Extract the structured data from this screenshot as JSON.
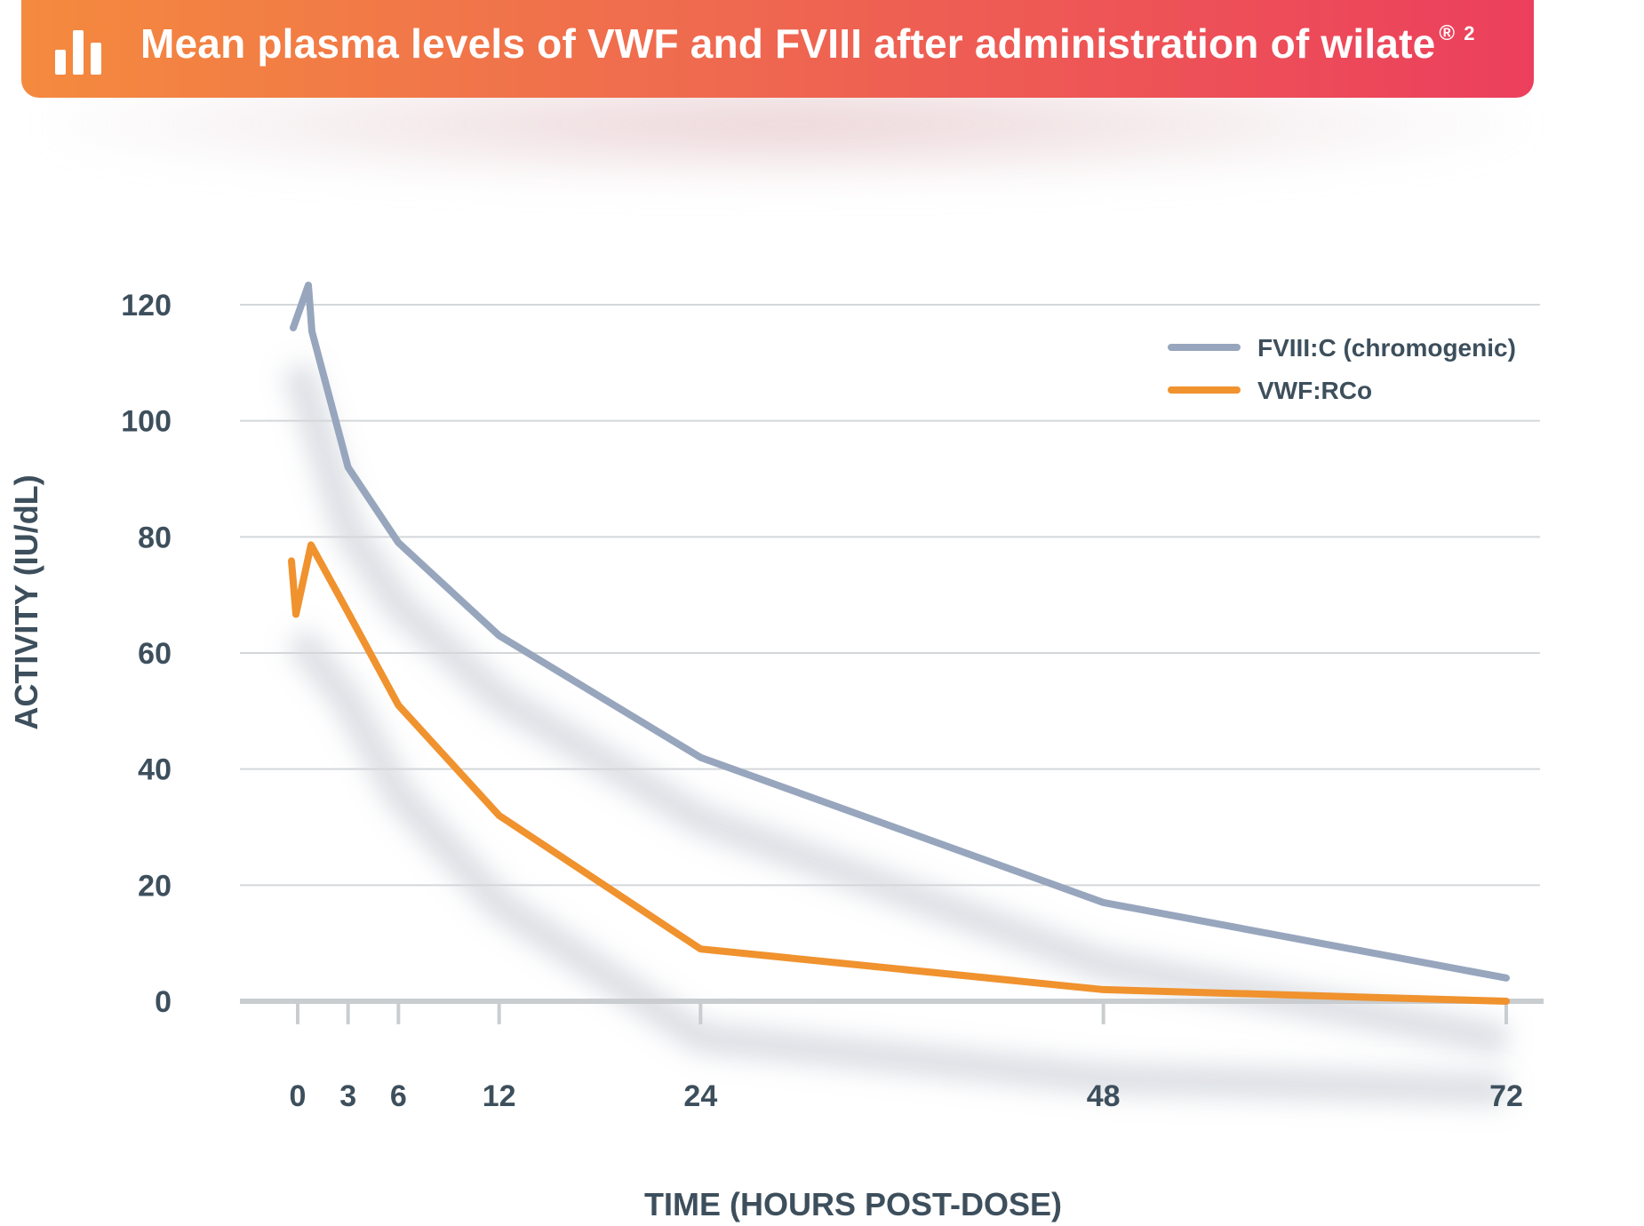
{
  "header": {
    "title": "Mean plasma levels of VWF and FVIII after administration of wilate",
    "registered_mark": "®",
    "reference": "2",
    "icon": "bar-chart-icon",
    "gradient_colors": [
      "#f48a3e",
      "#ec3f5d"
    ]
  },
  "chart_data": {
    "type": "line",
    "title": "Mean plasma levels of VWF and FVIII after administration of wilate® 2",
    "xlabel": "TIME (HOURS POST-DOSE)",
    "ylabel": "ACTIVITY (IU/dL)",
    "x_ticks": [
      0,
      3,
      6,
      12,
      24,
      48,
      72
    ],
    "y_ticks": [
      0,
      20,
      40,
      60,
      80,
      100,
      120
    ],
    "ylim": [
      0,
      120
    ],
    "xlim": [
      0,
      72
    ],
    "grid": true,
    "legend_position": "top-right",
    "series": [
      {
        "name": "FVIII:C (chromogenic)",
        "color": "#97a6bd",
        "x": [
          0,
          3,
          6,
          12,
          24,
          48,
          72
        ],
        "y": [
          120,
          92,
          79,
          63,
          42,
          17,
          4
        ]
      },
      {
        "name": "VWF:RCo",
        "color": "#f0922e",
        "x": [
          0,
          3,
          6,
          12,
          24,
          48,
          72
        ],
        "y": [
          78,
          67,
          51,
          32,
          9,
          2,
          0
        ]
      }
    ]
  }
}
